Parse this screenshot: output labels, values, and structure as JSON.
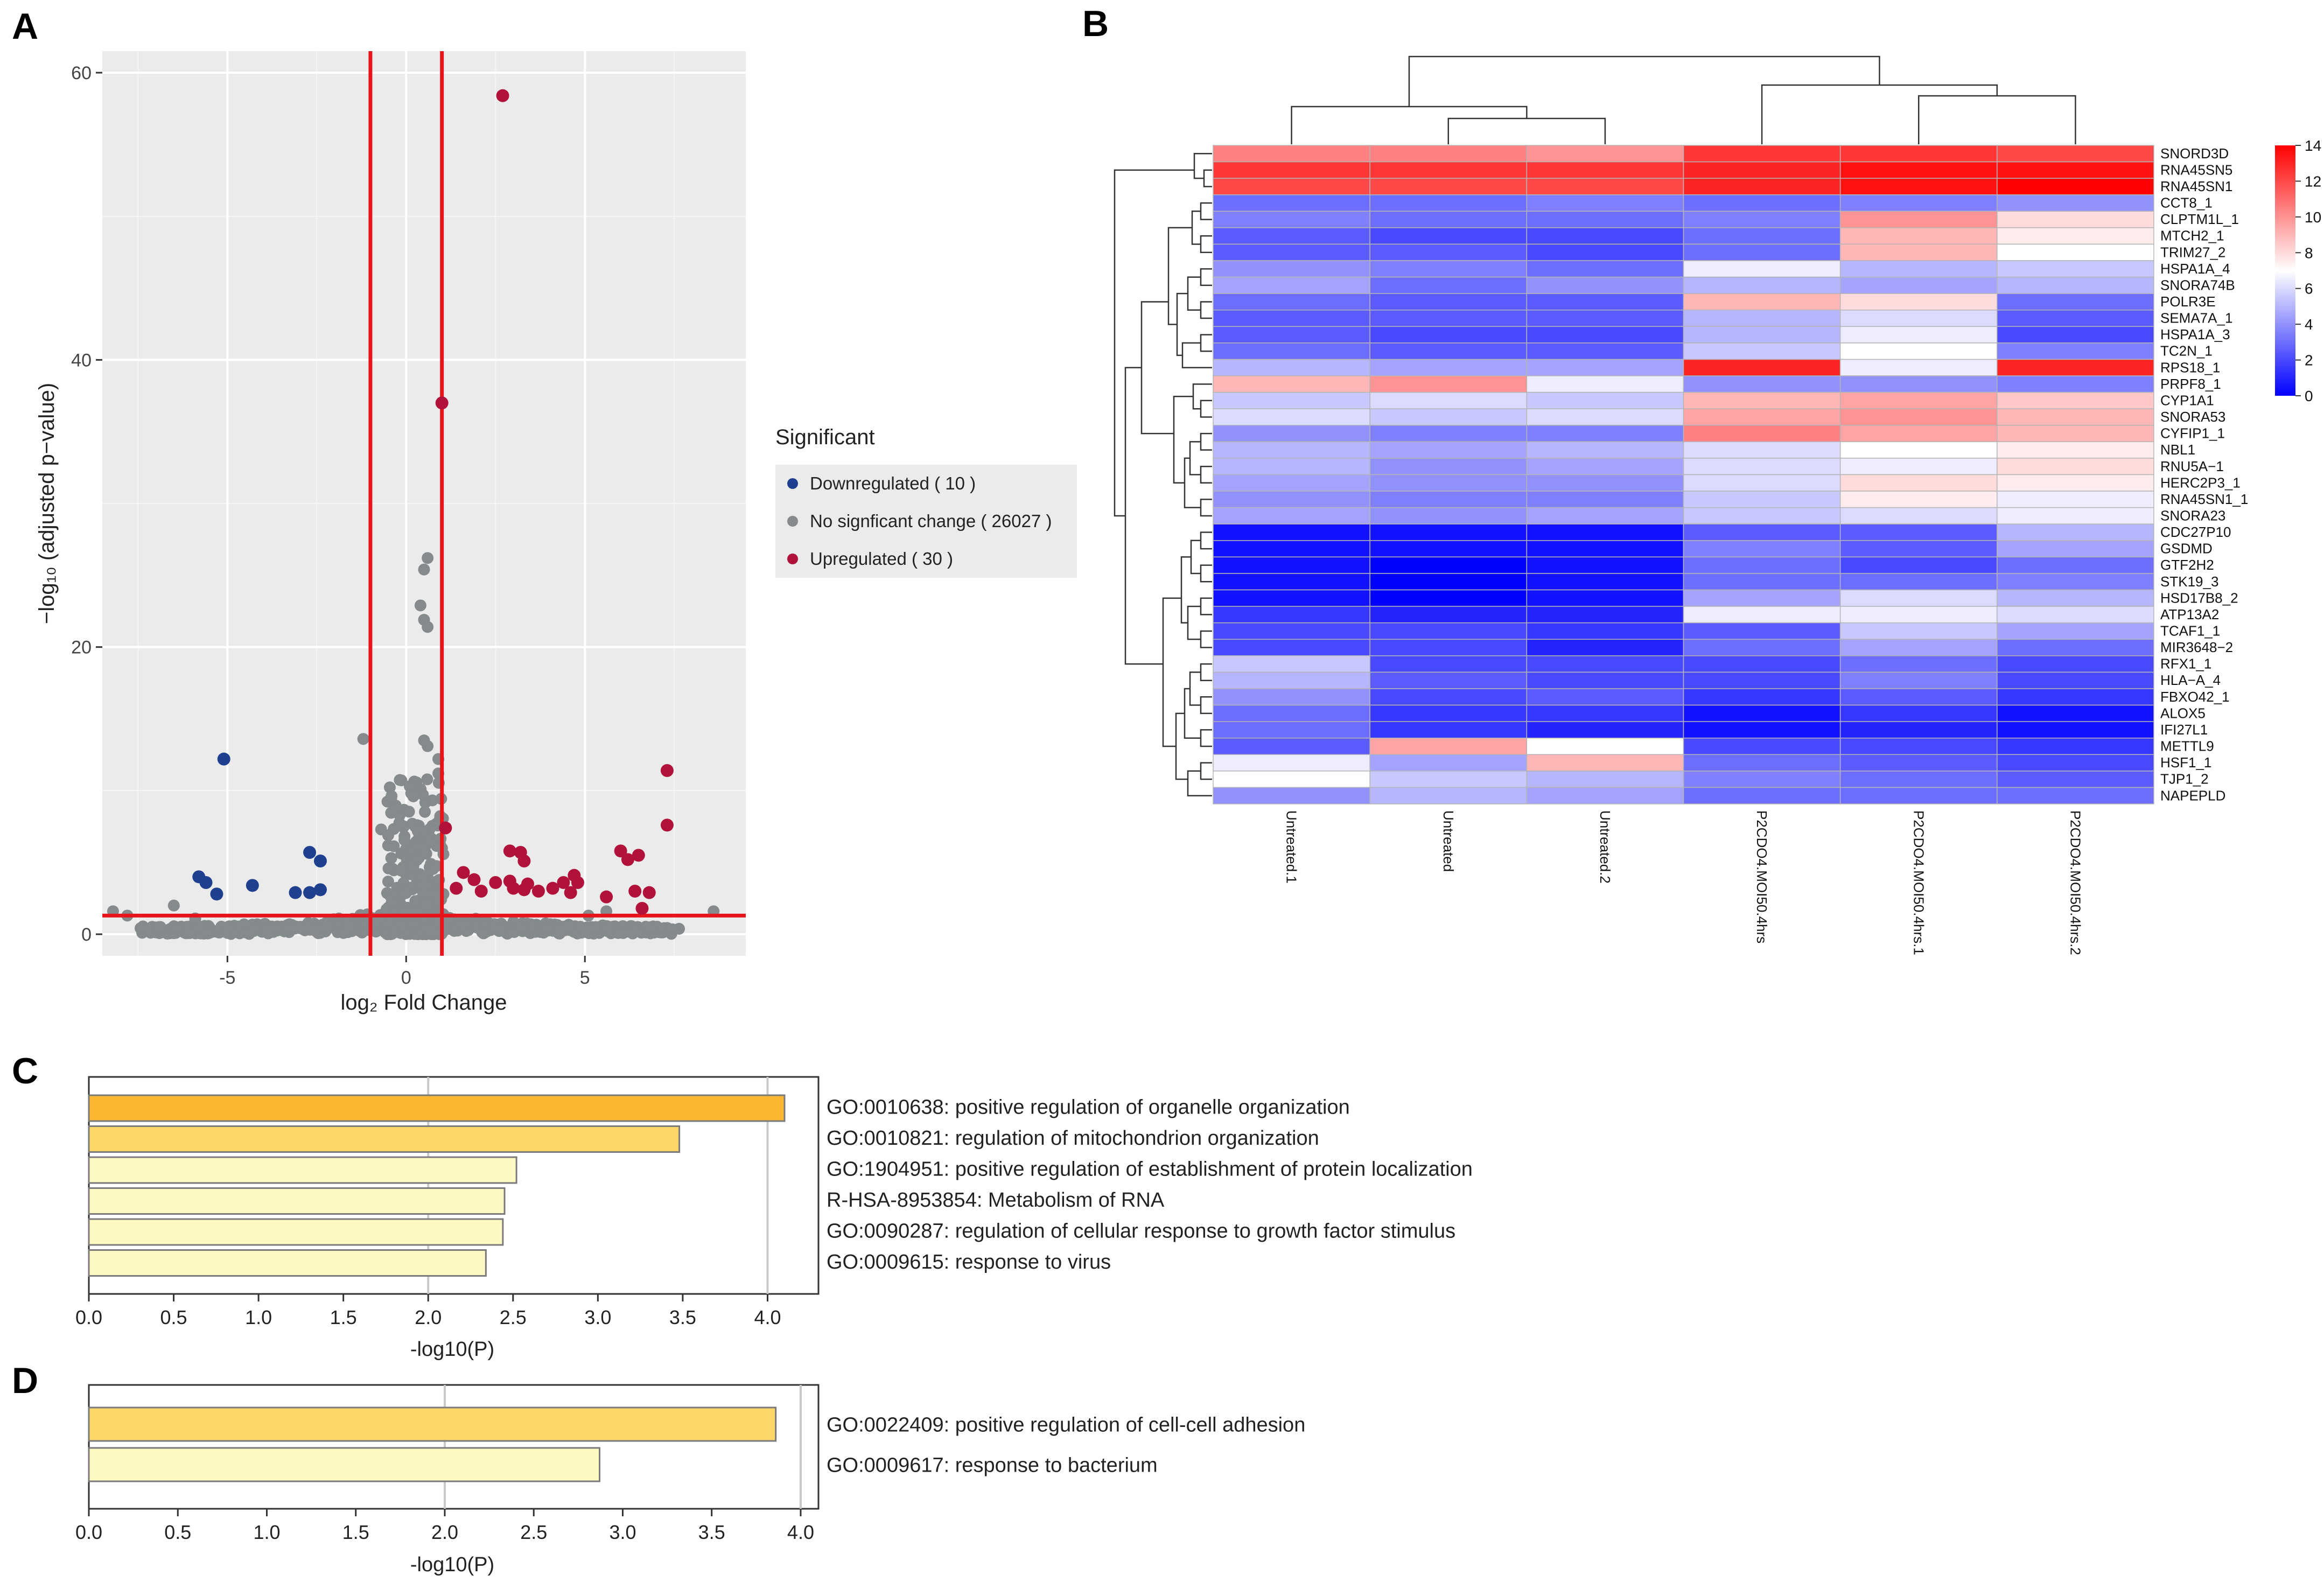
{
  "panels": {
    "a": "A",
    "b": "B",
    "c": "C",
    "d": "D"
  },
  "colors": {
    "down": "#1f3f8f",
    "ns": "#858a8c",
    "up": "#b0123a",
    "threshold": "#e8141c",
    "bar_dark": "#fbb732",
    "bar_mid": "#fdd66a",
    "bar_light": "#fef8c2"
  },
  "volcano": {
    "chart_data": {
      "type": "scatter",
      "xlabel": "log₂ Fold Change",
      "ylabel": "−log₁₀ (adjusted p−value)",
      "xlim": [
        -8.5,
        9.5
      ],
      "ylim": [
        -1.5,
        61.5
      ],
      "x_ticks": [
        -5,
        0,
        5
      ],
      "y_ticks": [
        0,
        20,
        40,
        60
      ],
      "thresholds": {
        "x": [
          -1,
          1
        ],
        "y": 1.3
      },
      "legend": {
        "title": "Significant",
        "entries": [
          {
            "key": "down",
            "label": "Downregulated ( 10 )"
          },
          {
            "key": "ns",
            "label": "No signficant change ( 26027 )"
          },
          {
            "key": "up",
            "label": "Upregulated ( 30 )"
          }
        ]
      },
      "down": [
        [
          -5.1,
          12.2
        ],
        [
          -5.8,
          4.0
        ],
        [
          -5.6,
          3.6
        ],
        [
          -4.3,
          3.4
        ],
        [
          -2.7,
          5.7
        ],
        [
          -2.4,
          5.1
        ],
        [
          -3.1,
          2.9
        ],
        [
          -2.7,
          2.9
        ],
        [
          -2.4,
          3.1
        ],
        [
          -5.3,
          2.8
        ]
      ],
      "up": [
        [
          2.7,
          58.4
        ],
        [
          1.0,
          37.0
        ],
        [
          7.3,
          11.4
        ],
        [
          7.3,
          7.6
        ],
        [
          1.1,
          7.4
        ],
        [
          2.9,
          5.8
        ],
        [
          3.2,
          5.7
        ],
        [
          3.3,
          5.1
        ],
        [
          6.0,
          5.8
        ],
        [
          6.2,
          5.2
        ],
        [
          6.5,
          5.5
        ],
        [
          4.7,
          4.1
        ],
        [
          1.6,
          4.3
        ],
        [
          1.9,
          3.8
        ],
        [
          2.5,
          3.6
        ],
        [
          2.9,
          3.7
        ],
        [
          3.4,
          3.5
        ],
        [
          3.7,
          3.0
        ],
        [
          4.1,
          3.2
        ],
        [
          4.4,
          3.6
        ],
        [
          4.8,
          3.6
        ],
        [
          1.4,
          3.2
        ],
        [
          2.1,
          3.0
        ],
        [
          3.0,
          3.2
        ],
        [
          4.6,
          2.9
        ],
        [
          5.6,
          2.6
        ],
        [
          6.4,
          3.0
        ],
        [
          6.8,
          2.9
        ],
        [
          3.3,
          3.1
        ],
        [
          6.6,
          1.8
        ]
      ]
    }
  },
  "heatmap": {
    "chart_data": {
      "type": "heatmap",
      "columns": [
        "Untreated.1",
        "Untreated",
        "Untreated.2",
        "P2CDO4.MOI50.4hrs",
        "P2CDO4.MOI50.4hrs.1",
        "P2CDO4.MOI50.4hrs.2"
      ],
      "rows": [
        "SNORD3D",
        "RNA45SN5",
        "RNA45SN1",
        "CCT8_1",
        "CLPTM1L_1",
        "MTCH2_1",
        "TRIM27_2",
        "HSPA1A_4",
        "SNORA74B",
        "POLR3E",
        "SEMA7A_1",
        "HSPA1A_3",
        "TC2N_1",
        "RPS18_1",
        "PRPF8_1",
        "CYP1A1",
        "SNORA53",
        "CYFIP1_1",
        "NBL1",
        "RNU5A−1",
        "HERC2P3_1",
        "RNA45SN1_1",
        "SNORA23",
        "CDC27P10",
        "GSDMD",
        "GTF2H2",
        "STK19_3",
        "HSD17B8_2",
        "ATP13A2",
        "TCAF1_1",
        "MIR3648−2",
        "RFX1_1",
        "HLA−A_4",
        "FBXO42_1",
        "ALOX5",
        "IFI27L1",
        "METTL9",
        "HSF1_1",
        "TJP1_2",
        "NAPEPLD"
      ],
      "values": [
        [
          10.5,
          10.5,
          10.0,
          12.5,
          12.5,
          12.0
        ],
        [
          12.5,
          12.5,
          12.5,
          13.0,
          13.5,
          13.5
        ],
        [
          12.0,
          12.0,
          12.0,
          13.0,
          13.5,
          14.0
        ],
        [
          3.0,
          3.0,
          3.5,
          3.0,
          3.5,
          4.0
        ],
        [
          3.5,
          3.0,
          3.0,
          3.5,
          10.0,
          8.0
        ],
        [
          2.5,
          2.0,
          2.0,
          3.0,
          9.0,
          7.5
        ],
        [
          2.5,
          2.5,
          2.0,
          3.0,
          9.0,
          7.0
        ],
        [
          4.0,
          3.5,
          3.0,
          6.5,
          5.0,
          5.5
        ],
        [
          4.5,
          3.0,
          4.0,
          5.0,
          4.5,
          5.0
        ],
        [
          3.0,
          2.5,
          2.5,
          9.0,
          8.0,
          3.0
        ],
        [
          2.5,
          2.5,
          2.5,
          5.0,
          6.0,
          2.5
        ],
        [
          2.5,
          2.0,
          2.0,
          5.0,
          6.5,
          2.0
        ],
        [
          3.0,
          2.5,
          2.5,
          5.5,
          7.0,
          3.5
        ],
        [
          5.0,
          4.5,
          4.5,
          13.0,
          6.5,
          13.0
        ],
        [
          9.0,
          10.0,
          6.5,
          4.0,
          4.0,
          3.5
        ],
        [
          5.5,
          6.0,
          5.5,
          9.0,
          9.5,
          8.5
        ],
        [
          6.0,
          5.5,
          6.0,
          9.5,
          10.0,
          9.0
        ],
        [
          4.0,
          3.5,
          3.5,
          10.5,
          9.5,
          9.0
        ],
        [
          5.0,
          4.5,
          5.0,
          6.0,
          7.0,
          7.5
        ],
        [
          5.0,
          4.0,
          4.5,
          6.0,
          6.5,
          8.0
        ],
        [
          4.5,
          4.0,
          4.0,
          6.0,
          8.0,
          7.5
        ],
        [
          4.0,
          3.5,
          3.5,
          5.5,
          7.5,
          6.5
        ],
        [
          4.5,
          4.0,
          4.5,
          5.5,
          6.0,
          6.5
        ],
        [
          0.5,
          0.5,
          0.5,
          2.5,
          2.5,
          5.0
        ],
        [
          0.5,
          0.5,
          0.5,
          3.5,
          2.5,
          4.5
        ],
        [
          0.5,
          0.0,
          0.5,
          3.0,
          2.0,
          3.0
        ],
        [
          0.5,
          0.0,
          0.5,
          3.0,
          3.0,
          3.5
        ],
        [
          0.5,
          0.0,
          0.5,
          4.5,
          6.0,
          5.0
        ],
        [
          1.5,
          1.0,
          1.0,
          6.5,
          6.5,
          6.0
        ],
        [
          2.0,
          2.0,
          1.5,
          2.5,
          5.5,
          4.5
        ],
        [
          2.0,
          2.0,
          1.0,
          3.0,
          4.5,
          3.0
        ],
        [
          5.5,
          2.0,
          2.0,
          2.0,
          3.0,
          2.0
        ],
        [
          5.0,
          2.5,
          2.0,
          2.0,
          3.5,
          2.0
        ],
        [
          4.0,
          2.0,
          2.5,
          1.5,
          2.5,
          1.5
        ],
        [
          3.0,
          1.5,
          1.5,
          0.5,
          1.5,
          0.5
        ],
        [
          3.0,
          1.5,
          1.0,
          0.5,
          1.0,
          0.5
        ],
        [
          2.5,
          9.5,
          7.0,
          2.0,
          2.0,
          1.5
        ],
        [
          6.5,
          4.5,
          9.0,
          3.0,
          2.5,
          2.0
        ],
        [
          7.0,
          5.5,
          5.0,
          3.5,
          3.0,
          2.5
        ],
        [
          4.0,
          5.0,
          4.5,
          3.0,
          3.0,
          3.0
        ]
      ],
      "color_scale": {
        "min": 0,
        "max": 14,
        "low": "#0000ff",
        "mid": "#ffffff",
        "high": "#ff0000"
      },
      "colorbar_ticks": [
        0,
        2,
        4,
        6,
        8,
        10,
        12,
        14
      ]
    }
  },
  "enrich_c": {
    "chart_data": {
      "type": "bar",
      "orientation": "horizontal",
      "xlabel": "-log10(P)",
      "xlim": [
        0,
        4.3
      ],
      "x_ticks": [
        "0.0",
        "0.5",
        "1.0",
        "1.5",
        "2.0",
        "2.5",
        "3.0",
        "3.5",
        "4.0"
      ],
      "x_tick_values": [
        0,
        0.5,
        1,
        1.5,
        2,
        2.5,
        3,
        3.5,
        4
      ],
      "grid_lines": [
        2,
        4
      ],
      "categories": [
        "GO:0010638: positive regulation of organelle organization",
        "GO:0010821: regulation of mitochondrion organization",
        "GO:1904951: positive regulation of establishment of protein localization",
        "R-HSA-8953854: Metabolism of RNA",
        "GO:0090287: regulation of cellular response to growth factor stimulus",
        "GO:0009615: response to virus"
      ],
      "values": [
        4.1,
        3.48,
        2.52,
        2.45,
        2.44,
        2.34
      ],
      "shades": [
        "dark",
        "mid",
        "light",
        "light",
        "light",
        "light"
      ]
    }
  },
  "enrich_d": {
    "chart_data": {
      "type": "bar",
      "orientation": "horizontal",
      "xlabel": "-log10(P)",
      "xlim": [
        0,
        4.1
      ],
      "x_ticks": [
        "0.0",
        "0.5",
        "1.0",
        "1.5",
        "2.0",
        "2.5",
        "3.0",
        "3.5",
        "4.0"
      ],
      "x_tick_values": [
        0,
        0.5,
        1,
        1.5,
        2,
        2.5,
        3,
        3.5,
        4
      ],
      "grid_lines": [
        2,
        4
      ],
      "categories": [
        "GO:0022409: positive regulation of cell-cell adhesion",
        "GO:0009617: response to bacterium"
      ],
      "values": [
        3.86,
        2.87
      ],
      "shades": [
        "mid",
        "light"
      ]
    }
  }
}
